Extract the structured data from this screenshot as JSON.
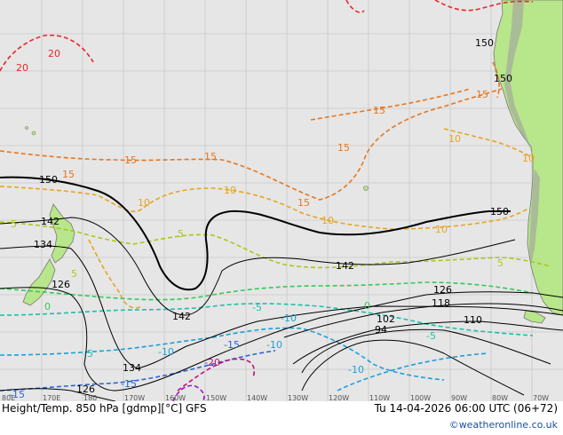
{
  "caption": {
    "title": "Height/Temp. 850 hPa [gdmp][°C] GFS",
    "valid_time": "Tu 14-04-2026 06:00 UTC (06+72)",
    "credit": "©weatheronline.co.uk"
  },
  "longitude_labels": [
    "80E",
    "170E",
    "180",
    "170W",
    "160W",
    "150W",
    "140W",
    "130W",
    "120W",
    "110W",
    "100W",
    "90W",
    "80W",
    "70W"
  ],
  "height_labels": [
    "150",
    "150",
    "150",
    "150",
    "142",
    "142",
    "142",
    "134",
    "134",
    "126",
    "126",
    "126",
    "118",
    "110",
    "102",
    "94"
  ],
  "temperature_labels": [
    "20",
    "20",
    "15",
    "15",
    "15",
    "15",
    "15",
    "15",
    "15",
    "10",
    "10",
    "10",
    "10",
    "10",
    "10",
    "5",
    "5",
    "5",
    "5",
    "0",
    "0",
    "-5",
    "-5",
    "-5",
    "-10",
    "-10",
    "-10",
    "-10",
    "-15",
    "-15",
    "-15",
    "-20"
  ],
  "colors": {
    "ocean": "#e6e6e6",
    "land": "#b8e68a",
    "grid": "#c8c8c8",
    "height_contour": "#000000",
    "t20": "#e8262b",
    "t15": "#e8761e",
    "t10": "#e8a51e",
    "t5": "#a8c81e",
    "t0": "#36c85a",
    "tm5": "#1ebfa8",
    "tm10": "#1e9fd8",
    "tm15": "#2a64d8",
    "tm20": "#b4147a",
    "tm25": "#9c14c8",
    "credit": "#1a4fa0"
  }
}
